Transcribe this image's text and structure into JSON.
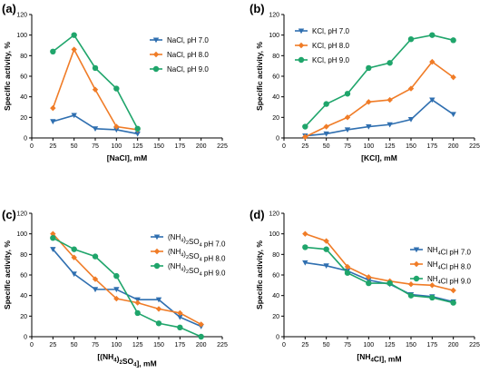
{
  "colors": {
    "blue": "#2f6fb0",
    "orange": "#f07c27",
    "green": "#1fa56b"
  },
  "chart_data": [
    {
      "panel": "(a)",
      "type": "line",
      "xlabel": "[NaCl], mM",
      "ylabel": "Specific activity, %",
      "xlim": [
        0,
        225
      ],
      "ylim": [
        0,
        120
      ],
      "xticks": [
        0,
        25,
        50,
        75,
        100,
        125,
        150,
        175,
        200,
        225
      ],
      "yticks": [
        0,
        20,
        40,
        60,
        80,
        100,
        120
      ],
      "legend_position": "right",
      "series": [
        {
          "name": "NaCl, pH 7.0",
          "color": "blue",
          "marker": "triangle-down",
          "x": [
            25,
            50,
            75,
            100,
            125
          ],
          "y": [
            16,
            22,
            9,
            8,
            4
          ]
        },
        {
          "name": "NaCl, pH 8.0",
          "color": "orange",
          "marker": "diamond",
          "x": [
            25,
            50,
            75,
            100,
            125
          ],
          "y": [
            29,
            86,
            47,
            11,
            8
          ]
        },
        {
          "name": "NaCl, pH 9.0",
          "color": "green",
          "marker": "circle",
          "x": [
            25,
            50,
            75,
            100,
            125
          ],
          "y": [
            84,
            100,
            68,
            48,
            9
          ]
        }
      ]
    },
    {
      "panel": "(b)",
      "type": "line",
      "xlabel": "[KCl], mM",
      "ylabel": "Specific activity, %",
      "xlim": [
        0,
        225
      ],
      "ylim": [
        0,
        120
      ],
      "xticks": [
        0,
        25,
        50,
        75,
        100,
        125,
        150,
        175,
        200,
        225
      ],
      "yticks": [
        0,
        20,
        40,
        60,
        80,
        100,
        120
      ],
      "legend_position": "top-left",
      "series": [
        {
          "name": "KCl, pH 7.0",
          "color": "blue",
          "marker": "triangle-down",
          "x": [
            25,
            50,
            75,
            100,
            125,
            150,
            175,
            200
          ],
          "y": [
            2,
            4,
            8,
            11,
            13,
            18,
            37,
            23
          ]
        },
        {
          "name": "KCl, pH 8.0",
          "color": "orange",
          "marker": "diamond",
          "x": [
            25,
            50,
            75,
            100,
            125,
            150,
            175,
            200
          ],
          "y": [
            1,
            11,
            20,
            35,
            37,
            48,
            74,
            59
          ]
        },
        {
          "name": "KCl, pH 9.0",
          "color": "green",
          "marker": "circle",
          "x": [
            25,
            50,
            75,
            100,
            125,
            150,
            175,
            200
          ],
          "y": [
            11,
            33,
            43,
            68,
            73,
            96,
            100,
            95
          ]
        }
      ]
    },
    {
      "panel": "(c)",
      "type": "line",
      "xlabel": "[(NH4)2SO4], mM",
      "ylabel": "Specific activity, %",
      "xlim": [
        0,
        225
      ],
      "ylim": [
        0,
        120
      ],
      "xticks": [
        0,
        25,
        50,
        75,
        100,
        125,
        150,
        175,
        200,
        225
      ],
      "yticks": [
        0,
        20,
        40,
        60,
        80,
        100,
        120
      ],
      "legend_position": "top-right",
      "series": [
        {
          "name": "(NH4)2SO4 pH 7.0",
          "color": "blue",
          "marker": "triangle-down",
          "x": [
            25,
            50,
            75,
            100,
            125,
            150,
            175,
            200
          ],
          "y": [
            85,
            61,
            46,
            46,
            36,
            36,
            19,
            10
          ]
        },
        {
          "name": "(NH4)2SO4 pH 8.0",
          "color": "orange",
          "marker": "diamond",
          "x": [
            25,
            50,
            75,
            100,
            125,
            150,
            175,
            200
          ],
          "y": [
            100,
            77,
            56,
            37,
            33,
            27,
            23,
            12
          ]
        },
        {
          "name": "(NH4)2SO4 pH 9.0",
          "color": "green",
          "marker": "circle",
          "x": [
            25,
            50,
            75,
            100,
            125,
            150,
            175,
            200
          ],
          "y": [
            96,
            85,
            78,
            59,
            23,
            13,
            9,
            0
          ]
        }
      ]
    },
    {
      "panel": "(d)",
      "type": "line",
      "xlabel": "[NH4Cl], mM",
      "ylabel": "Specific activity, %",
      "xlim": [
        0,
        225
      ],
      "ylim": [
        0,
        120
      ],
      "xticks": [
        0,
        25,
        50,
        75,
        100,
        125,
        150,
        175,
        200,
        225
      ],
      "yticks": [
        0,
        20,
        40,
        60,
        80,
        100,
        120
      ],
      "legend_position": "right",
      "series": [
        {
          "name": "NH4Cl pH 7.0",
          "color": "blue",
          "marker": "triangle-down",
          "x": [
            25,
            50,
            75,
            100,
            125,
            150,
            175,
            200
          ],
          "y": [
            72,
            69,
            64,
            55,
            51,
            41,
            39,
            34
          ]
        },
        {
          "name": "NH4Cl pH 8.0",
          "color": "orange",
          "marker": "diamond",
          "x": [
            25,
            50,
            75,
            100,
            125,
            150,
            175,
            200
          ],
          "y": [
            100,
            93,
            68,
            58,
            54,
            51,
            50,
            45
          ]
        },
        {
          "name": "NH4Cl pH 9.0",
          "color": "green",
          "marker": "circle",
          "x": [
            25,
            50,
            75,
            100,
            125,
            150,
            175,
            200
          ],
          "y": [
            87,
            85,
            62,
            52,
            52,
            40,
            38,
            33
          ]
        }
      ]
    }
  ]
}
